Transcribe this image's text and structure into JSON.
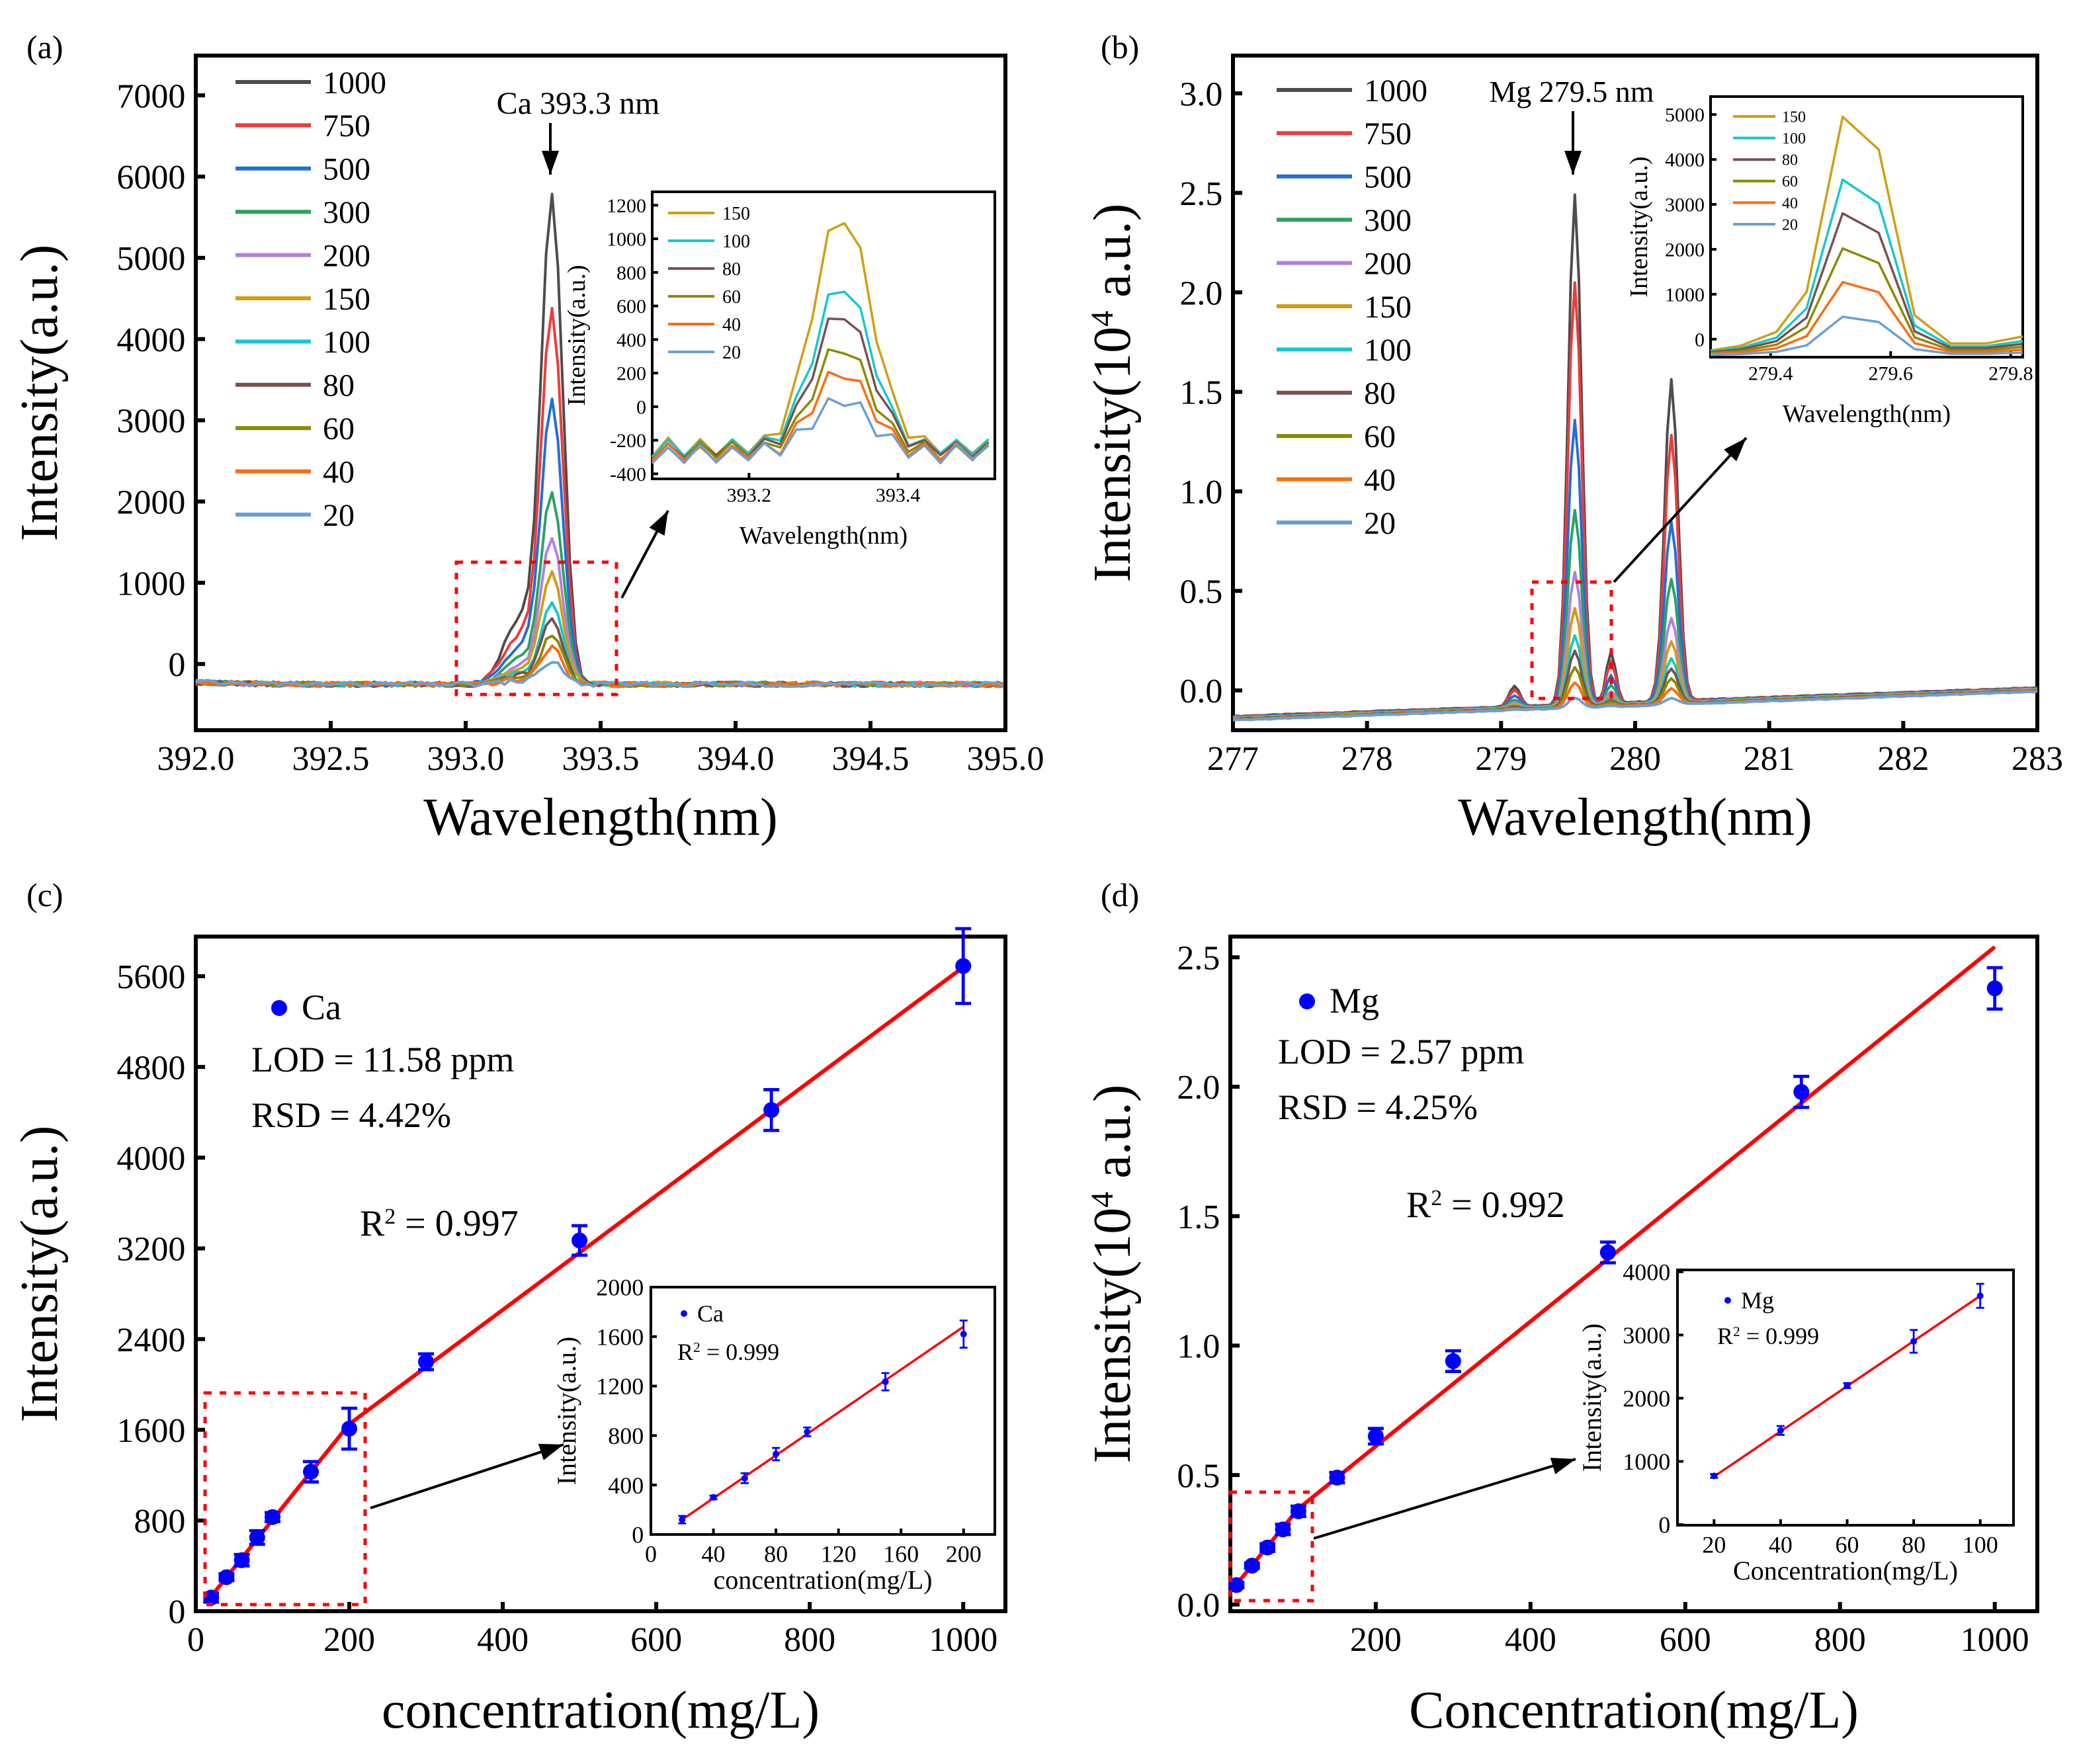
{
  "colors": {
    "1000": "#4d4d4d",
    "750": "#ee3b3b",
    "500": "#1f6fd8",
    "300": "#2ca25f",
    "200": "#b27fe0",
    "150": "#d19e10",
    "100": "#14c8cf",
    "80": "#7a5050",
    "60": "#8a8a00",
    "40": "#ff6a13",
    "20": "#6b9fd6",
    "fit": "#ff0000",
    "points": "#0000ff",
    "dash": "#ff0000"
  },
  "chart_data": [
    {
      "panel": "a",
      "type": "line",
      "label": "(a)",
      "xlabel": "Wavelength(nm)",
      "ylabel": "Intensity(a.u.)",
      "xlim": [
        392,
        395
      ],
      "ylim": [
        -815,
        7490
      ],
      "xticks": [
        "392.0",
        "392.5",
        "393.0",
        "393.5",
        "394.0",
        "394.5",
        "395.0"
      ],
      "yticks": [
        "0",
        "1000",
        "2000",
        "3000",
        "4000",
        "5000",
        "6000",
        "7000"
      ],
      "annotation": "Ca 393.3 nm",
      "peak_wavelength": 393.32,
      "baseline": -250,
      "series": [
        {
          "name": "1000",
          "peak": 5700
        },
        {
          "name": "750",
          "peak": 4300
        },
        {
          "name": "500",
          "peak": 3180
        },
        {
          "name": "300",
          "peak": 2080
        },
        {
          "name": "200",
          "peak": 1520
        },
        {
          "name": "150",
          "peak": 1130
        },
        {
          "name": "100",
          "peak": 730
        },
        {
          "name": "80",
          "peak": 550
        },
        {
          "name": "60",
          "peak": 350
        },
        {
          "name": "40",
          "peak": 200
        },
        {
          "name": "20",
          "peak": 30
        }
      ],
      "inset": {
        "xlabel": "Wavelength(nm)",
        "ylabel": "Intensity(a.u.)",
        "xlim": [
          393.07,
          393.53
        ],
        "ylim": [
          -430,
          1280
        ],
        "xticks": [
          "393.2",
          "393.4"
        ],
        "yticks": [
          "-400",
          "-200",
          "0",
          "200",
          "400",
          "600",
          "800",
          "1000",
          "1200"
        ],
        "series": [
          {
            "name": "150",
            "peak": 1140
          },
          {
            "name": "100",
            "peak": 720
          },
          {
            "name": "80",
            "peak": 550
          },
          {
            "name": "60",
            "peak": 350
          },
          {
            "name": "40",
            "peak": 200
          },
          {
            "name": "20",
            "peak": 30
          }
        ]
      }
    },
    {
      "panel": "b",
      "type": "line",
      "label": "(b)",
      "xlabel": "Wavelength(nm)",
      "ylabel": [
        "Intensity(10",
        "4",
        " a.u.)"
      ],
      "xlim": [
        277,
        283
      ],
      "ylim": [
        -0.2,
        3.19
      ],
      "xticks": [
        "277",
        "278",
        "279",
        "280",
        "281",
        "282",
        "283"
      ],
      "yticks": [
        "0.0",
        "0.5",
        "1.0",
        "1.5",
        "2.0",
        "2.5",
        "3.0"
      ],
      "annotation": "Mg 279.5 nm",
      "peak_wavelength": 279.55,
      "second_peak_wavelength": 280.27,
      "series": [
        {
          "name": "1000",
          "peak": 2.56
        },
        {
          "name": "750",
          "peak": 2.12
        },
        {
          "name": "500",
          "peak": 1.43
        },
        {
          "name": "300",
          "peak": 0.98
        },
        {
          "name": "200",
          "peak": 0.67
        },
        {
          "name": "150",
          "peak": 0.49
        },
        {
          "name": "100",
          "peak": 0.355
        },
        {
          "name": "80",
          "peak": 0.28
        },
        {
          "name": "60",
          "peak": 0.2
        },
        {
          "name": "40",
          "peak": 0.125
        },
        {
          "name": "20",
          "peak": 0.05
        }
      ],
      "inset": {
        "xlabel": "Wavelength(nm)",
        "ylabel": "Intensity(a.u.)",
        "xlim": [
          279.3,
          279.82
        ],
        "ylim": [
          -400,
          5400
        ],
        "xticks": [
          "279.4",
          "279.6",
          "279.8"
        ],
        "yticks": [
          "0",
          "1000",
          "2000",
          "3000",
          "4000",
          "5000"
        ],
        "series": [
          {
            "name": "150",
            "peak": 4950
          },
          {
            "name": "100",
            "peak": 3550
          },
          {
            "name": "80",
            "peak": 2800
          },
          {
            "name": "60",
            "peak": 2020
          },
          {
            "name": "40",
            "peak": 1270
          },
          {
            "name": "20",
            "peak": 500
          }
        ]
      }
    },
    {
      "panel": "c",
      "type": "scatter",
      "label": "(c)",
      "xlabel": "concentration(mg/L)",
      "ylabel": "Intensity(a.u.)",
      "xlim": [
        0,
        1055
      ],
      "ylim": [
        0,
        5950
      ],
      "xticks": [
        "0",
        "200",
        "400",
        "600",
        "800",
        "1000"
      ],
      "yticks": [
        "0",
        "800",
        "1600",
        "2400",
        "3200",
        "4000",
        "4800",
        "5600"
      ],
      "legend": "Ca",
      "lod": "LOD = 11.58 ppm",
      "rsd": "RSD = 4.42%",
      "r2": [
        "R",
        "2",
        " = 0.997"
      ],
      "x": [
        20,
        40,
        60,
        80,
        100,
        150,
        200,
        300,
        500,
        750,
        1000
      ],
      "y": [
        120,
        300,
        450,
        650,
        830,
        1230,
        1610,
        2200,
        3270,
        4420,
        5690
      ],
      "err": [
        40,
        30,
        50,
        60,
        40,
        90,
        180,
        70,
        130,
        180,
        330
      ],
      "fit": [
        [
          20,
          130
        ],
        [
          200,
          1650
        ],
        [
          1000,
          5680
        ]
      ],
      "inset": {
        "xlabel": "concentration(mg/L)",
        "ylabel": "Intensity(a.u.)",
        "xlim": [
          0,
          220
        ],
        "ylim": [
          0,
          2000
        ],
        "xticks": [
          "0",
          "40",
          "80",
          "120",
          "160",
          "200"
        ],
        "yticks": [
          "0",
          "400",
          "800",
          "1200",
          "1600",
          "2000"
        ],
        "legend": "Ca",
        "r2": [
          "R",
          "2",
          " = 0.999"
        ],
        "x": [
          20,
          40,
          60,
          80,
          100,
          150,
          200
        ],
        "y": [
          120,
          300,
          455,
          650,
          830,
          1235,
          1620
        ],
        "err": [
          30,
          15,
          40,
          50,
          35,
          70,
          110
        ],
        "fit": [
          [
            20,
            120
          ],
          [
            200,
            1680
          ]
        ]
      }
    },
    {
      "panel": "d",
      "type": "scatter",
      "label": "(d)",
      "xlabel": "Concentration(mg/L)",
      "ylabel": [
        "Intensity(10",
        "4",
        " a.u.)"
      ],
      "xlim": [
        12,
        1055
      ],
      "ylim": [
        -0.026,
        2.58
      ],
      "xticks": [
        "200",
        "400",
        "600",
        "800",
        "1000"
      ],
      "yticks": [
        "0.0",
        "0.5",
        "1.0",
        "1.5",
        "2.0",
        "2.5"
      ],
      "legend": "Mg",
      "lod": "LOD = 2.57 ppm",
      "rsd": "RSD = 4.25%",
      "r2": [
        "R",
        "2",
        " = 0.992"
      ],
      "x": [
        20,
        40,
        60,
        80,
        100,
        150,
        200,
        300,
        500,
        750,
        1000
      ],
      "y": [
        0.075,
        0.15,
        0.22,
        0.29,
        0.36,
        0.49,
        0.65,
        0.94,
        1.36,
        1.98,
        2.38
      ],
      "err": [
        0.01,
        0.01,
        0.015,
        0.02,
        0.02,
        0.02,
        0.03,
        0.04,
        0.04,
        0.06,
        0.08
      ],
      "fit": [
        [
          20,
          0.078
        ],
        [
          100,
          0.37
        ],
        [
          1000,
          2.54
        ]
      ],
      "inset": {
        "xlabel": "Concentration(mg/L)",
        "ylabel": "Intensity(a.u.)",
        "xlim": [
          9,
          110
        ],
        "ylim": [
          -10,
          4030
        ],
        "xticks": [
          "20",
          "40",
          "60",
          "80",
          "100"
        ],
        "yticks": [
          "0",
          "1000",
          "2000",
          "3000",
          "4000"
        ],
        "legend": "Mg",
        "r2": [
          "R",
          "2",
          " = 0.999"
        ],
        "x": [
          20,
          40,
          60,
          80,
          100
        ],
        "y": [
          770,
          1490,
          2200,
          2900,
          3620
        ],
        "err": [
          30,
          70,
          40,
          180,
          190
        ],
        "fit": [
          [
            20,
            760
          ],
          [
            100,
            3620
          ]
        ]
      }
    }
  ]
}
